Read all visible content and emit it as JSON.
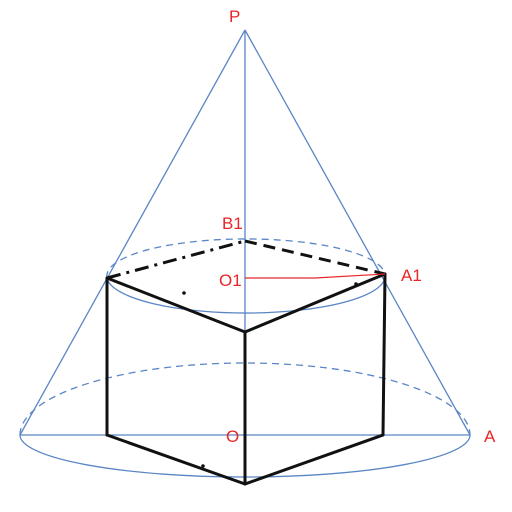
{
  "labels": {
    "apex": "P",
    "top_center": "O1",
    "top_point_a": "A1",
    "top_point_b": "B1",
    "base_center": "O",
    "base_point": "A"
  },
  "colors": {
    "cone": "#5b86c5",
    "prism": "#111111",
    "label": "#e8262a"
  }
}
